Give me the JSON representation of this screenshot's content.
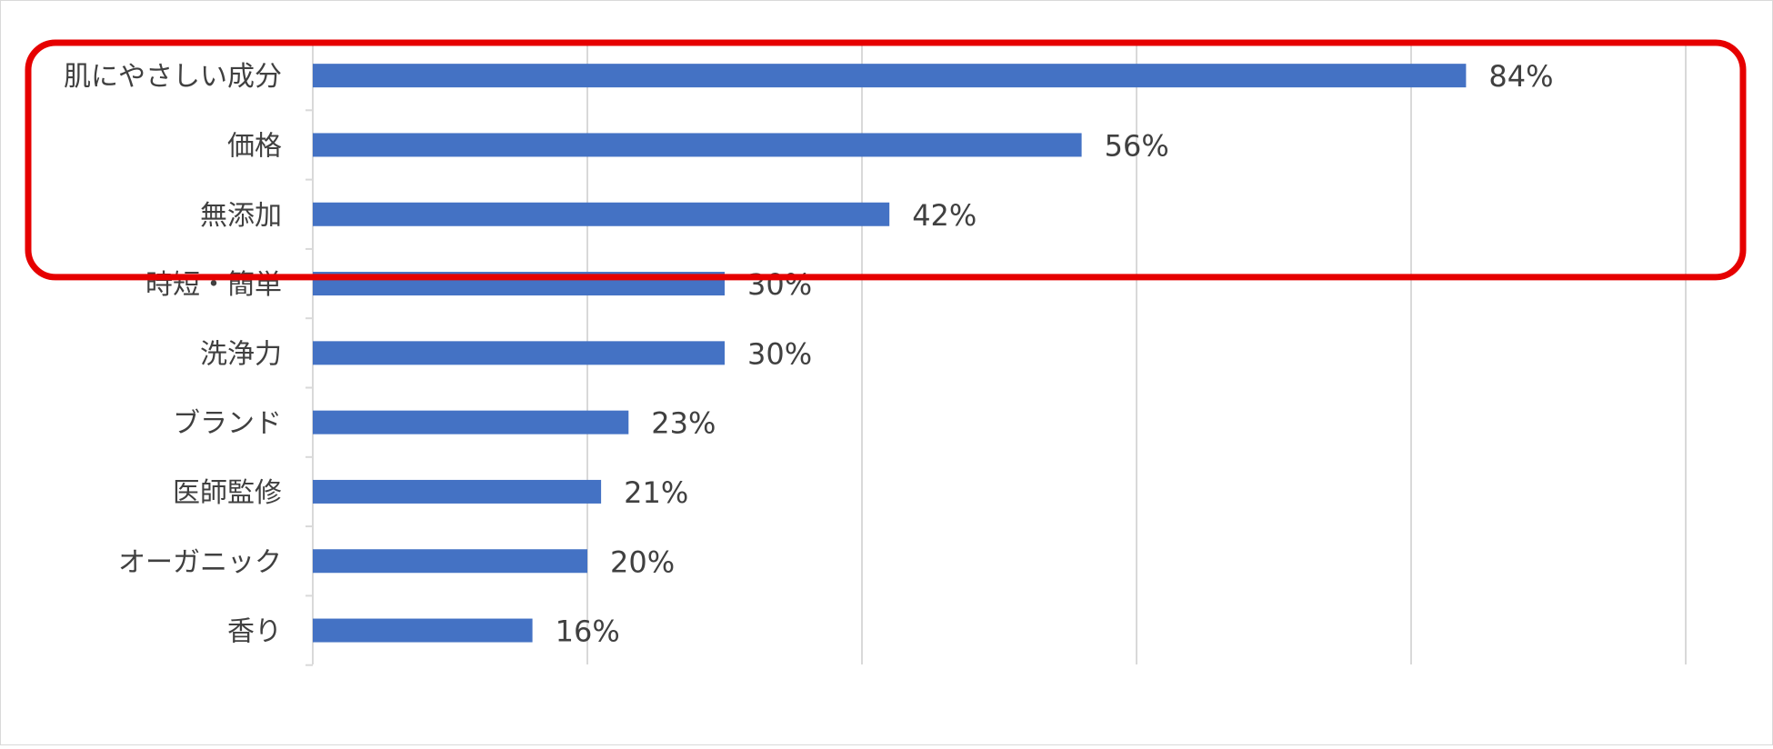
{
  "chart_data": {
    "type": "bar",
    "orientation": "horizontal",
    "categories": [
      "肌にやさしい成分",
      "価格",
      "無添加",
      "時短・簡単",
      "洗浄力",
      "ブランド",
      "医師監修",
      "オーガニック",
      "香り"
    ],
    "values": [
      84,
      56,
      42,
      30,
      30,
      23,
      21,
      20,
      16
    ],
    "data_labels": [
      "84%",
      "56%",
      "42%",
      "30%",
      "30%",
      "23%",
      "21%",
      "20%",
      "16%"
    ],
    "title": "",
    "xlabel": "",
    "ylabel": "",
    "xlim": [
      0,
      100
    ],
    "grid": true,
    "legend": "none",
    "highlight": {
      "categories": [
        "肌にやさしい成分",
        "価格",
        "無添加"
      ]
    },
    "colors": {
      "bar": "#4472c4",
      "highlight_border": "#e60000",
      "grid": "#d9d9d9",
      "text": "#404040"
    }
  }
}
